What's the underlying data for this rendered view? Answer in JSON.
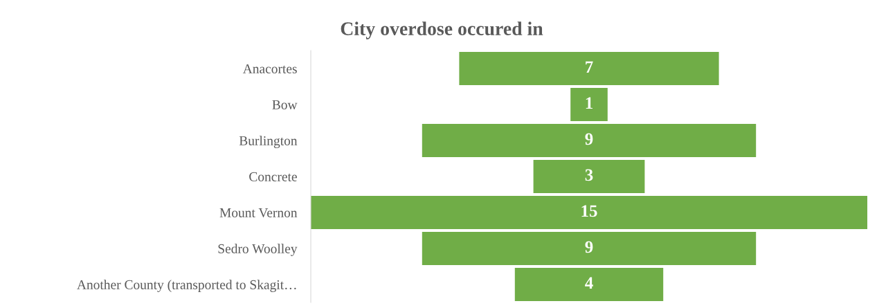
{
  "chart_data": {
    "type": "other",
    "title": "City overdose occured in",
    "categories": [
      "Anacortes",
      "Bow",
      "Burlington",
      "Concrete",
      "Mount Vernon",
      "Sedro Woolley",
      "Another County (transported to Skagit…"
    ],
    "values": [
      7,
      1,
      9,
      3,
      15,
      9,
      4
    ],
    "color": "#70ad47",
    "data_labels": true
  }
}
